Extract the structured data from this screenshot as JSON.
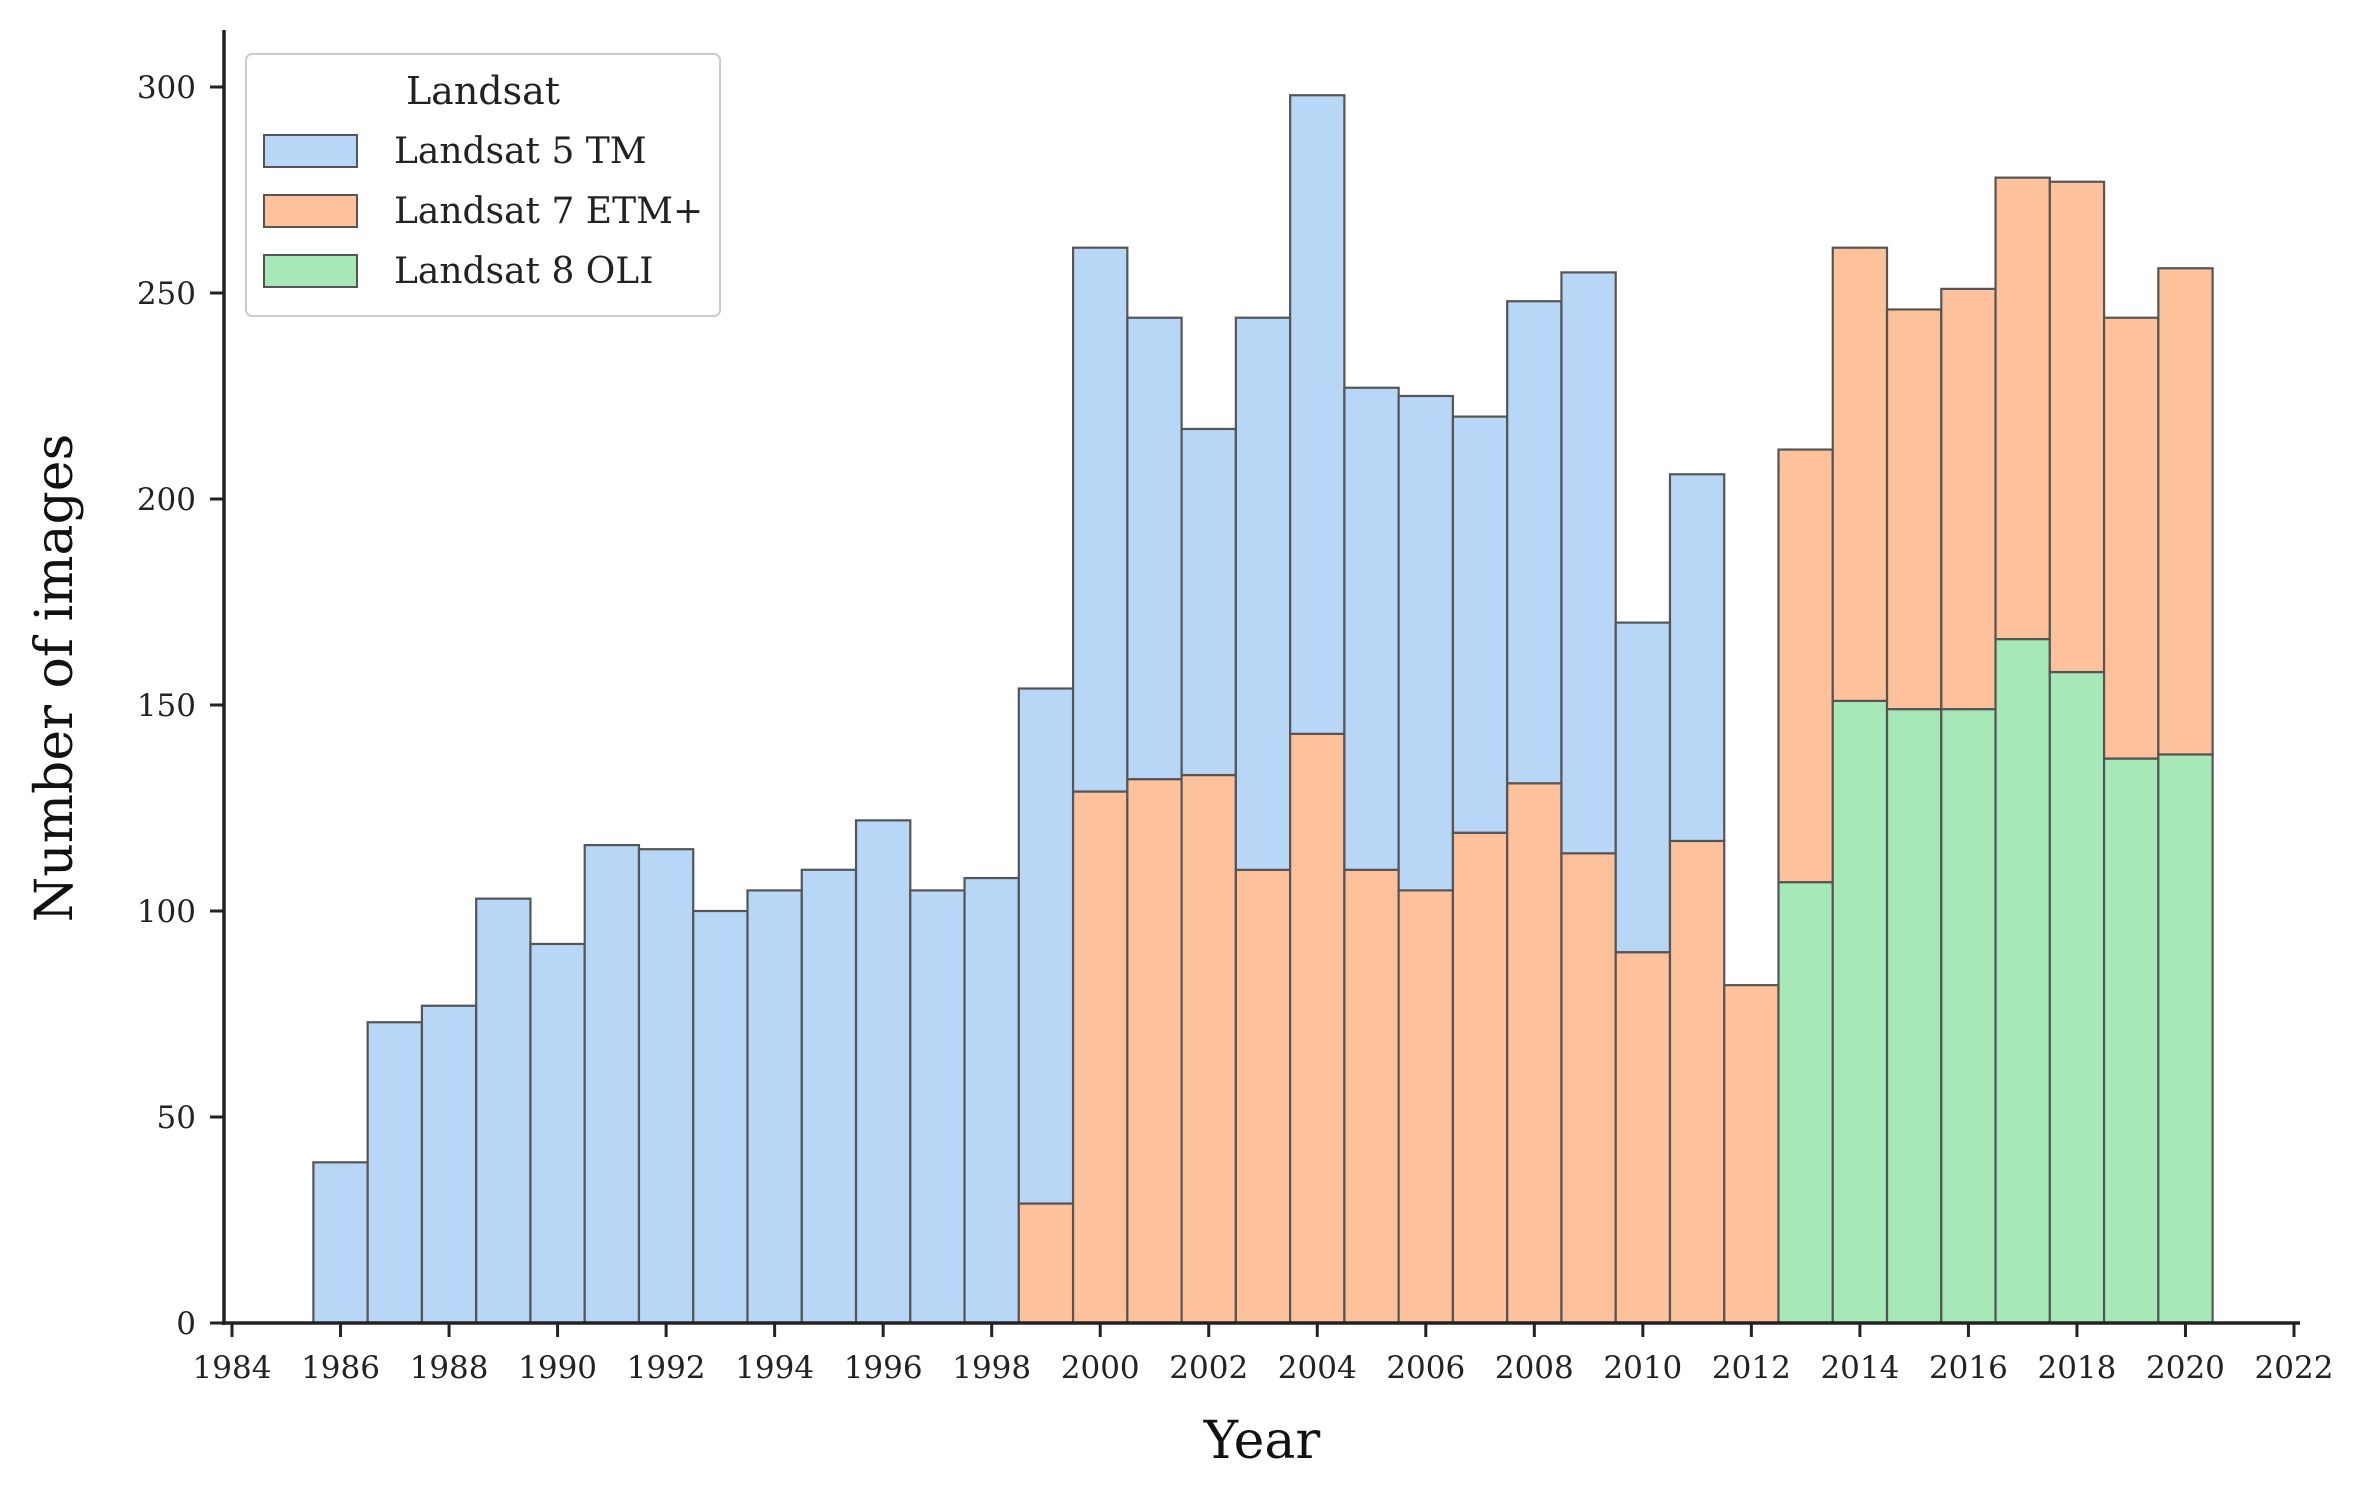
{
  "chart_data": {
    "type": "bar",
    "stacked": true,
    "title": "",
    "xlabel": "Year",
    "ylabel": "Number of images",
    "xlim": [
      1984,
      2022
    ],
    "ylim": [
      0,
      310
    ],
    "x_ticks": [
      1984,
      1986,
      1988,
      1990,
      1992,
      1994,
      1996,
      1998,
      2000,
      2002,
      2004,
      2006,
      2008,
      2010,
      2012,
      2014,
      2016,
      2018,
      2020,
      2022
    ],
    "y_ticks": [
      0,
      50,
      100,
      150,
      200,
      250,
      300
    ],
    "bin_width": 1,
    "legend": {
      "title": "Landsat",
      "position": "top-left",
      "entries": [
        "Landsat 5 TM",
        "Landsat 7 ETM+",
        "Landsat 8 OLI"
      ]
    },
    "colors": {
      "Landsat 5 TM": "#b8d6f5",
      "Landsat 7 ETM+": "#fdc29c",
      "Landsat 8 OLI": "#a6e8b8"
    },
    "categories": [
      1986,
      1987,
      1988,
      1989,
      1990,
      1991,
      1992,
      1993,
      1994,
      1995,
      1996,
      1997,
      1998,
      1999,
      2000,
      2001,
      2002,
      2003,
      2004,
      2005,
      2006,
      2007,
      2008,
      2009,
      2010,
      2011,
      2012,
      2013,
      2014,
      2015,
      2016,
      2017,
      2018,
      2019,
      2020
    ],
    "series": [
      {
        "name": "Landsat 8 OLI",
        "values": [
          0,
          0,
          0,
          0,
          0,
          0,
          0,
          0,
          0,
          0,
          0,
          0,
          0,
          0,
          0,
          0,
          0,
          0,
          0,
          0,
          0,
          0,
          0,
          0,
          0,
          0,
          0,
          107,
          151,
          149,
          149,
          166,
          158,
          137,
          138
        ]
      },
      {
        "name": "Landsat 7 ETM+",
        "values": [
          0,
          0,
          0,
          0,
          0,
          0,
          0,
          0,
          0,
          0,
          0,
          0,
          0,
          29,
          129,
          132,
          133,
          110,
          143,
          110,
          105,
          119,
          131,
          114,
          90,
          117,
          82,
          105,
          110,
          97,
          102,
          112,
          119,
          107,
          118
        ]
      },
      {
        "name": "Landsat 5 TM",
        "values": [
          39,
          73,
          77,
          103,
          92,
          116,
          115,
          100,
          105,
          110,
          122,
          105,
          108,
          125,
          132,
          112,
          84,
          134,
          155,
          117,
          120,
          101,
          117,
          141,
          80,
          89,
          0,
          0,
          0,
          0,
          0,
          0,
          0,
          0,
          0
        ]
      }
    ]
  }
}
